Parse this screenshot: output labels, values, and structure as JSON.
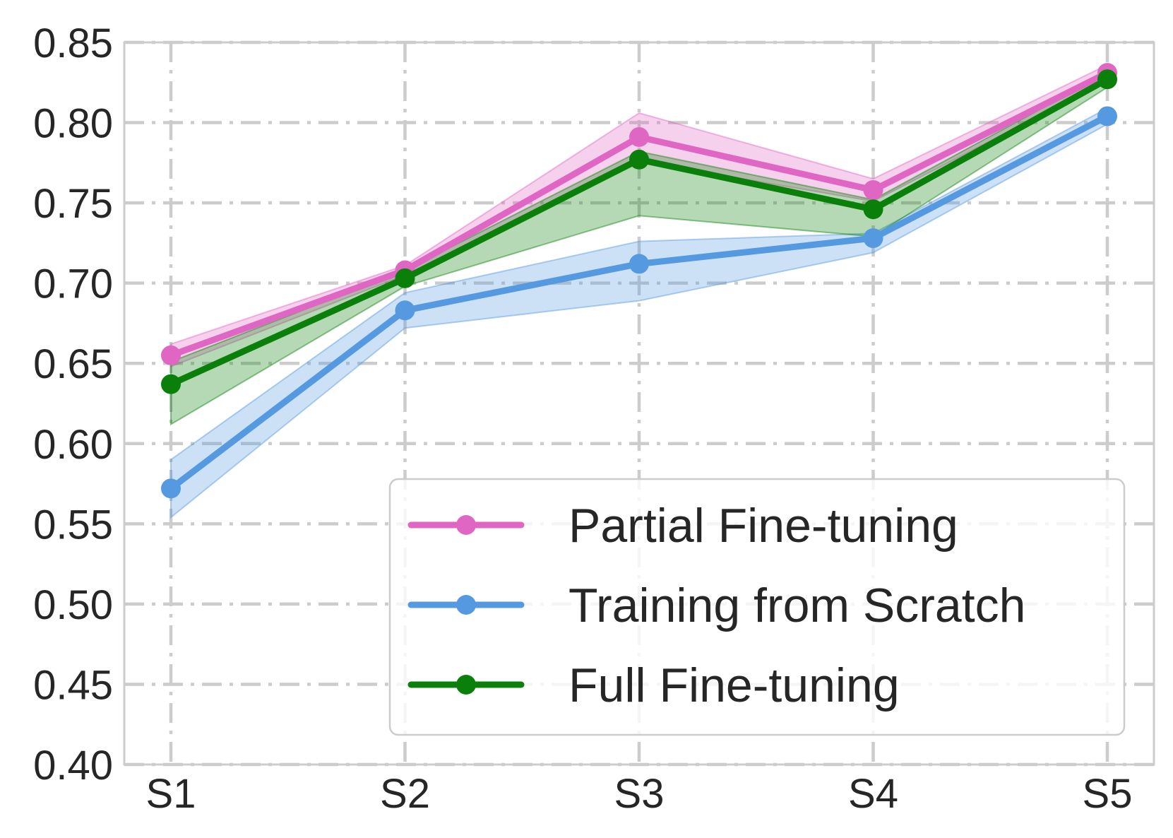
{
  "chart_data": {
    "type": "line",
    "title": "",
    "xlabel": "",
    "ylabel": "",
    "categories": [
      "S1",
      "S2",
      "S3",
      "S4",
      "S5"
    ],
    "ylim": [
      0.4,
      0.85
    ],
    "yticks": [
      "0.40",
      "0.45",
      "0.50",
      "0.55",
      "0.60",
      "0.65",
      "0.70",
      "0.75",
      "0.80",
      "0.85"
    ],
    "grid": true,
    "legend_position": "lower-right",
    "series": [
      {
        "name": "Partial Fine-tuning",
        "color": "#e066c3",
        "values": [
          0.655,
          0.708,
          0.791,
          0.758,
          0.831
        ],
        "lower": [
          0.648,
          0.705,
          0.776,
          0.751,
          0.826
        ],
        "upper": [
          0.662,
          0.711,
          0.806,
          0.765,
          0.836
        ]
      },
      {
        "name": "Training from Scratch",
        "color": "#5599e0",
        "values": [
          0.572,
          0.683,
          0.712,
          0.728,
          0.804
        ],
        "lower": [
          0.554,
          0.672,
          0.689,
          0.719,
          0.799
        ],
        "upper": [
          0.59,
          0.694,
          0.726,
          0.731,
          0.809
        ]
      },
      {
        "name": "Full Fine-tuning",
        "color": "#0a800a",
        "values": [
          0.637,
          0.703,
          0.777,
          0.746,
          0.827
        ],
        "lower": [
          0.612,
          0.698,
          0.742,
          0.729,
          0.822
        ],
        "upper": [
          0.651,
          0.708,
          0.782,
          0.752,
          0.831
        ]
      }
    ]
  }
}
